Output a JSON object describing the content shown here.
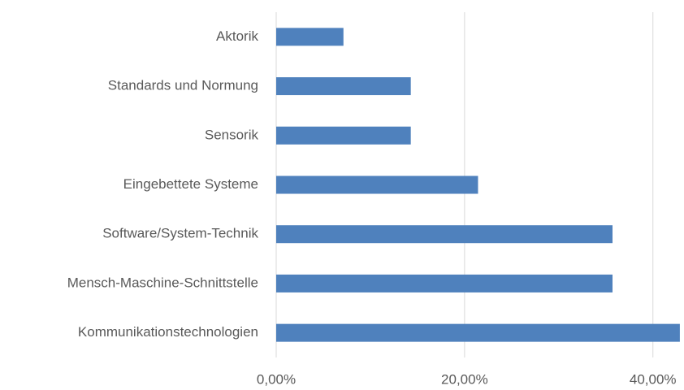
{
  "chart_data": {
    "type": "bar",
    "orientation": "horizontal",
    "categories": [
      "Aktorik",
      "Standards und Normung",
      "Sensorik",
      "Eingebettete Systeme",
      "Software/System-Technik",
      "Mensch-Maschine-Schnittstelle",
      "Kommunikationstechnologien"
    ],
    "values": [
      7.14,
      14.29,
      14.29,
      21.43,
      35.71,
      35.71,
      42.86
    ],
    "color": "#4f81bd",
    "xlim": [
      0,
      43.3
    ],
    "xticks": [
      {
        "value": 0,
        "label": "0,00%"
      },
      {
        "value": 20,
        "label": "20,00%"
      },
      {
        "value": 40,
        "label": "40,00%"
      }
    ],
    "grid": true
  }
}
